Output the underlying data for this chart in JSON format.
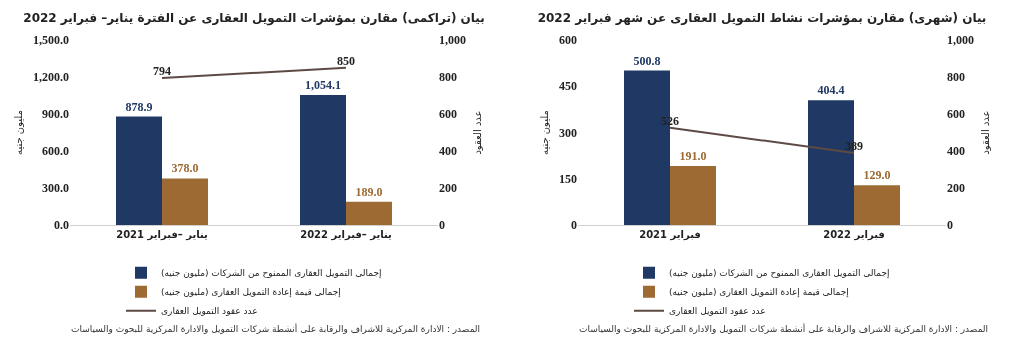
{
  "chart_data": [
    {
      "type": "bar",
      "title": "بيان (تراكمى) مقارن بمؤشرات التمويل العقارى عن الفترة يناير– فبراير 2022",
      "ylabel": "مليون جنيه",
      "y2label": "عدد العقود",
      "categories": [
        "يناير –فبراير 2021",
        "يناير –فبراير 2022"
      ],
      "series": [
        {
          "name": "إجمالى التمويل العقارى الممنوح من الشركات (مليون جنيه)",
          "color": "#1f3864",
          "values": [
            878.9,
            1054.1
          ],
          "value_labels": [
            "878.9",
            "1,054.1"
          ]
        },
        {
          "name": "إجمالى قيمة إعادة التمويل العقارى (مليون جنيه)",
          "color": "#9c6a32",
          "values": [
            378.0,
            189.0
          ],
          "value_labels": [
            "378.0",
            "189.0"
          ]
        },
        {
          "name": "عدد عقود التمويل العقارى",
          "type": "line",
          "axis": "y2",
          "color": "#5e4a44",
          "values": [
            794,
            850
          ],
          "value_labels": [
            "794",
            "850"
          ]
        }
      ],
      "ylim": [
        0,
        1500
      ],
      "yticks": [
        {
          "value": 0,
          "label": "0.0"
        },
        {
          "value": 300,
          "label": "300.0"
        },
        {
          "value": 600,
          "label": "600.0"
        },
        {
          "value": 900,
          "label": "900.0"
        },
        {
          "value": 1200,
          "label": "1,200.0"
        },
        {
          "value": 1500,
          "label": "1,500.0"
        }
      ],
      "y2lim": [
        0,
        1000
      ],
      "y2ticks": [
        0,
        200,
        400,
        600,
        800,
        {
          "value": 1000,
          "label": "1,000"
        }
      ],
      "grid": false,
      "legend": "bottom",
      "marker": "none",
      "line_style": "solid",
      "annotations": [
        "المصدر : الادارة المركزية للاشراف والرقابة على أنشطة شركات التمويل والادارة المركزية للبحوث والسياسات"
      ]
    },
    {
      "type": "bar",
      "title": "بيان (شهرى) مقارن بمؤشرات نشاط التمويل العقارى عن شهر فبراير 2022",
      "ylabel": "مليون جنيه",
      "y2label": "عدد العقود",
      "categories": [
        "فبراير 2021",
        "فبراير 2022"
      ],
      "series": [
        {
          "name": "إجمالى التمويل العقارى الممنوح من الشركات (مليون جنيه)",
          "color": "#1f3864",
          "values": [
            500.8,
            404.4
          ],
          "value_labels": [
            "500.8",
            "404.4"
          ]
        },
        {
          "name": "إجمالى قيمة إعادة التمويل العقارى (مليون جنيه)",
          "color": "#9c6a32",
          "values": [
            191.0,
            129.0
          ],
          "value_labels": [
            "191.0",
            "129.0"
          ]
        },
        {
          "name": "عدد عقود التمويل العقارى",
          "type": "line",
          "axis": "y2",
          "color": "#5e4a44",
          "values": [
            526,
            389
          ],
          "value_labels": [
            "526",
            "389"
          ]
        }
      ],
      "ylim": [
        0,
        600
      ],
      "yticks": [
        0,
        150,
        300,
        450,
        600
      ],
      "y2lim": [
        0,
        1000
      ],
      "y2ticks": [
        0,
        200,
        400,
        600,
        800,
        {
          "value": 1000,
          "label": "1,000"
        }
      ],
      "grid": false,
      "legend": "bottom",
      "marker": "none",
      "line_style": "solid",
      "annotations": [
        "المصدر : الادارة المركزية للاشراف والرقابة على أنشطة شركات التمويل والادارة المركزية للبحوث والسياسات"
      ]
    }
  ]
}
